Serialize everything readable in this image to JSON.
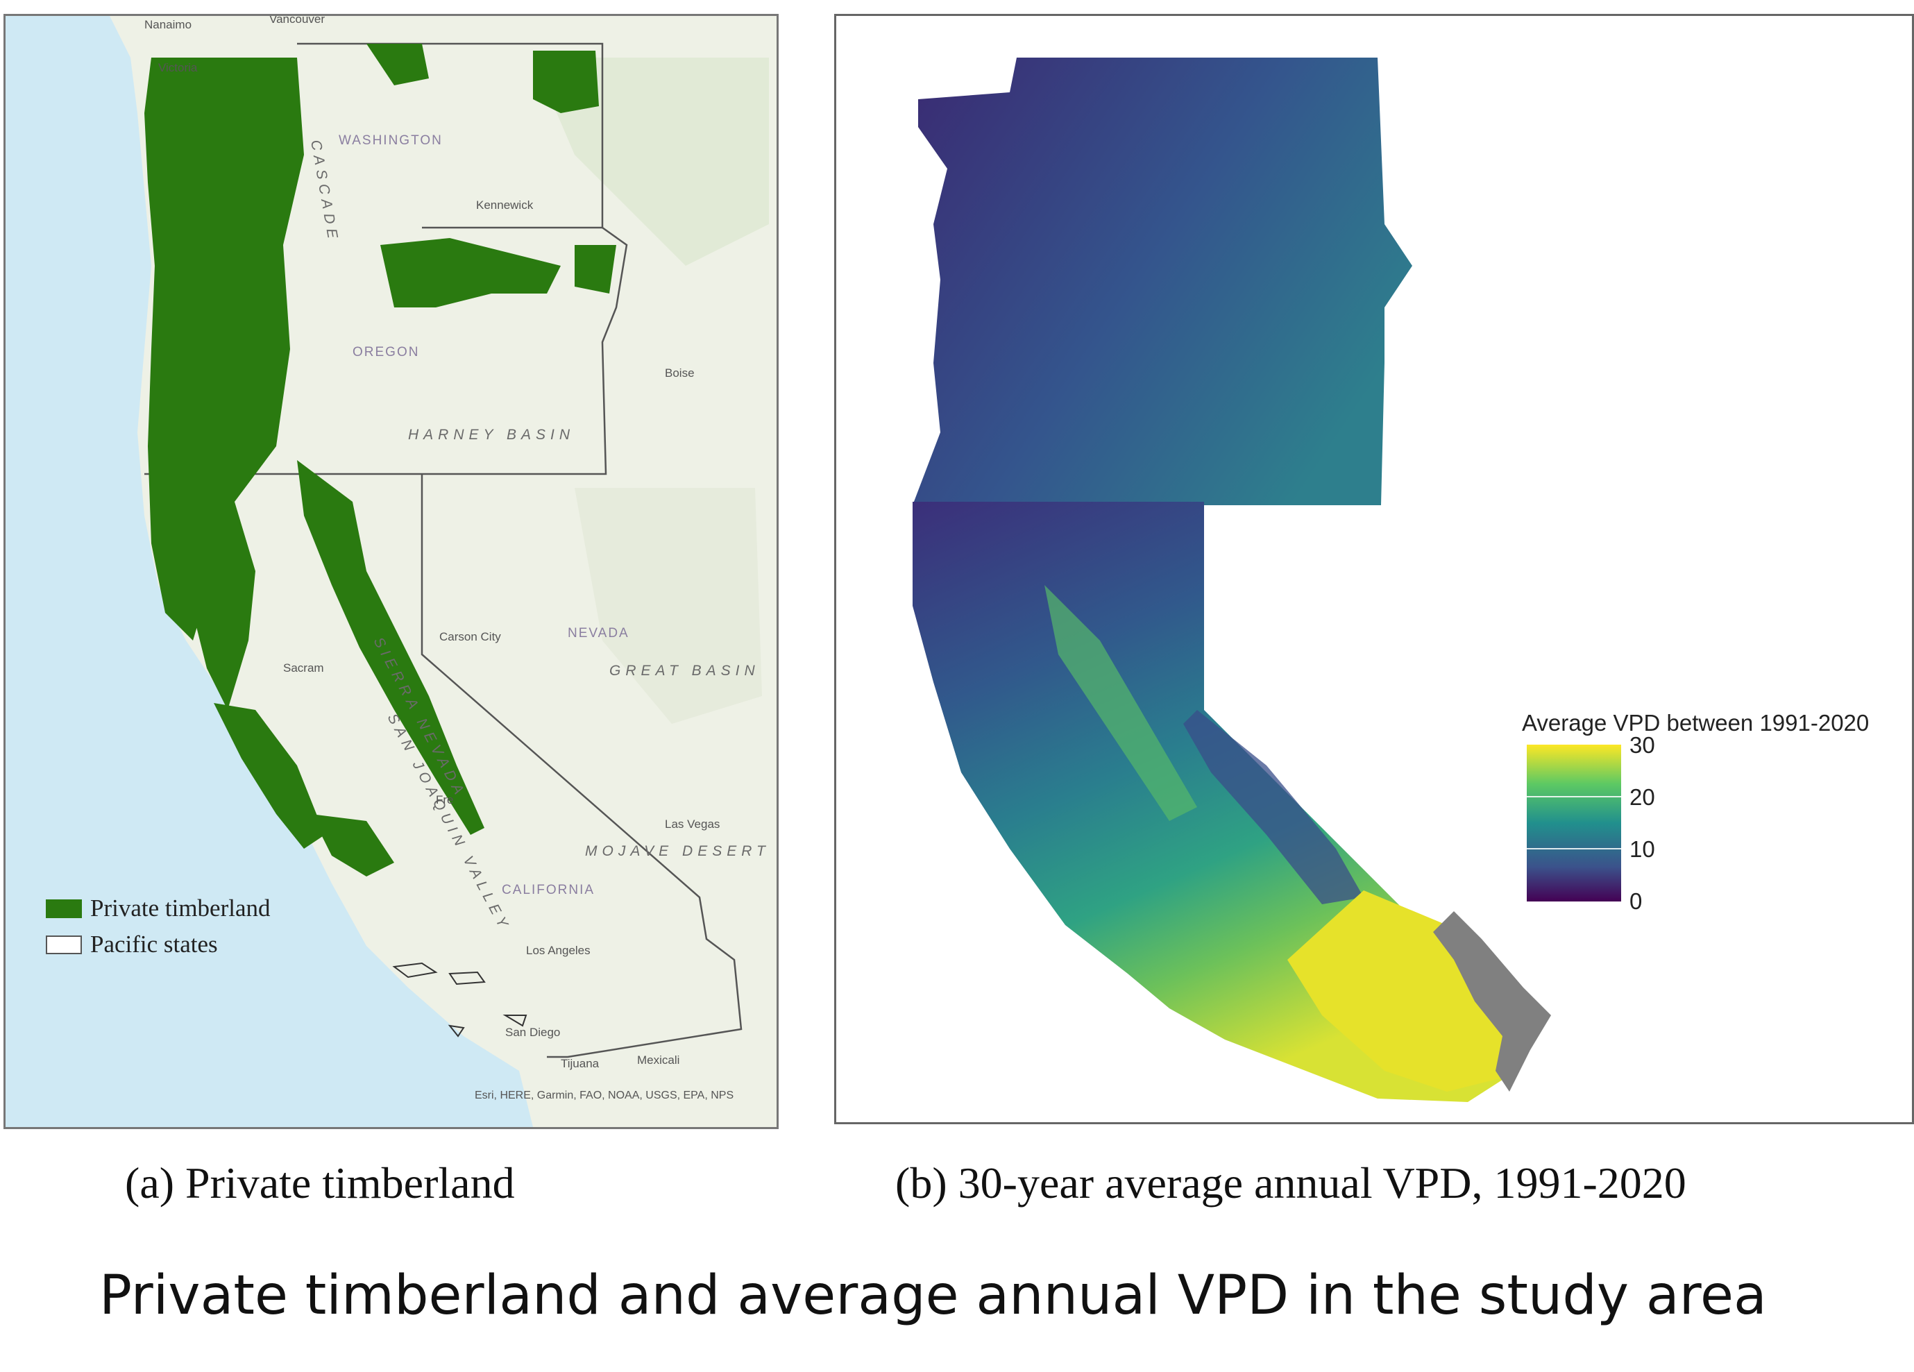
{
  "panel_a": {
    "caption": "(a) Private timberland",
    "legend": {
      "items": [
        {
          "label": "Private timberland",
          "color": "#2a7a10"
        },
        {
          "label": "Pacific states",
          "color": "#ffffff"
        }
      ]
    },
    "attribution": "Esri, HERE, Garmin, FAO, NOAA, USGS, EPA, NPS",
    "map_labels": {
      "nanaimo": "Nanaimo",
      "vancouver": "Vancouver",
      "victoria": "Victoria",
      "washington": "WASHINGTON",
      "kennewick": "Kennewick",
      "oregon": "OREGON",
      "harney_basin": "HARNEY BASIN",
      "boise": "Boise",
      "carson_city": "Carson City",
      "nevada": "NEVADA",
      "great_basin": "GREAT BASIN",
      "sacramento": "Sacram",
      "san_joaquin_valley": "SAN JOAQUIN VALLEY",
      "las_vegas": "Las Vegas",
      "mojave_desert": "MOJAVE DESERT",
      "california": "CALIFORNIA",
      "los_angeles": "Los Angeles",
      "san_diego": "San Diego",
      "tijuana": "Tijuana",
      "mexicali": "Mexicali",
      "fresno": "Fre",
      "cascade": "CASCADE",
      "sierra_nevada": "SIERRA NEVADA"
    },
    "colors": {
      "ocean": "#cfe9f4",
      "land": "#eef1e6",
      "timberland": "#2a7a10",
      "state_outline": "#555555"
    }
  },
  "panel_b": {
    "caption": "(b) 30-year average annual VPD, 1991-2020",
    "legend": {
      "title": "Average VPD between 1991-2020",
      "ticks": [
        "30",
        "20",
        "10",
        "0"
      ],
      "range": [
        0,
        30
      ],
      "colormap": "viridis"
    },
    "colors": {
      "low": "#440154",
      "mid_low": "#3b528b",
      "mid": "#21908d",
      "mid_high": "#5dc963",
      "high": "#fde725",
      "missing": "#808080"
    }
  },
  "title": "Private timberland and average annual VPD in the study area"
}
